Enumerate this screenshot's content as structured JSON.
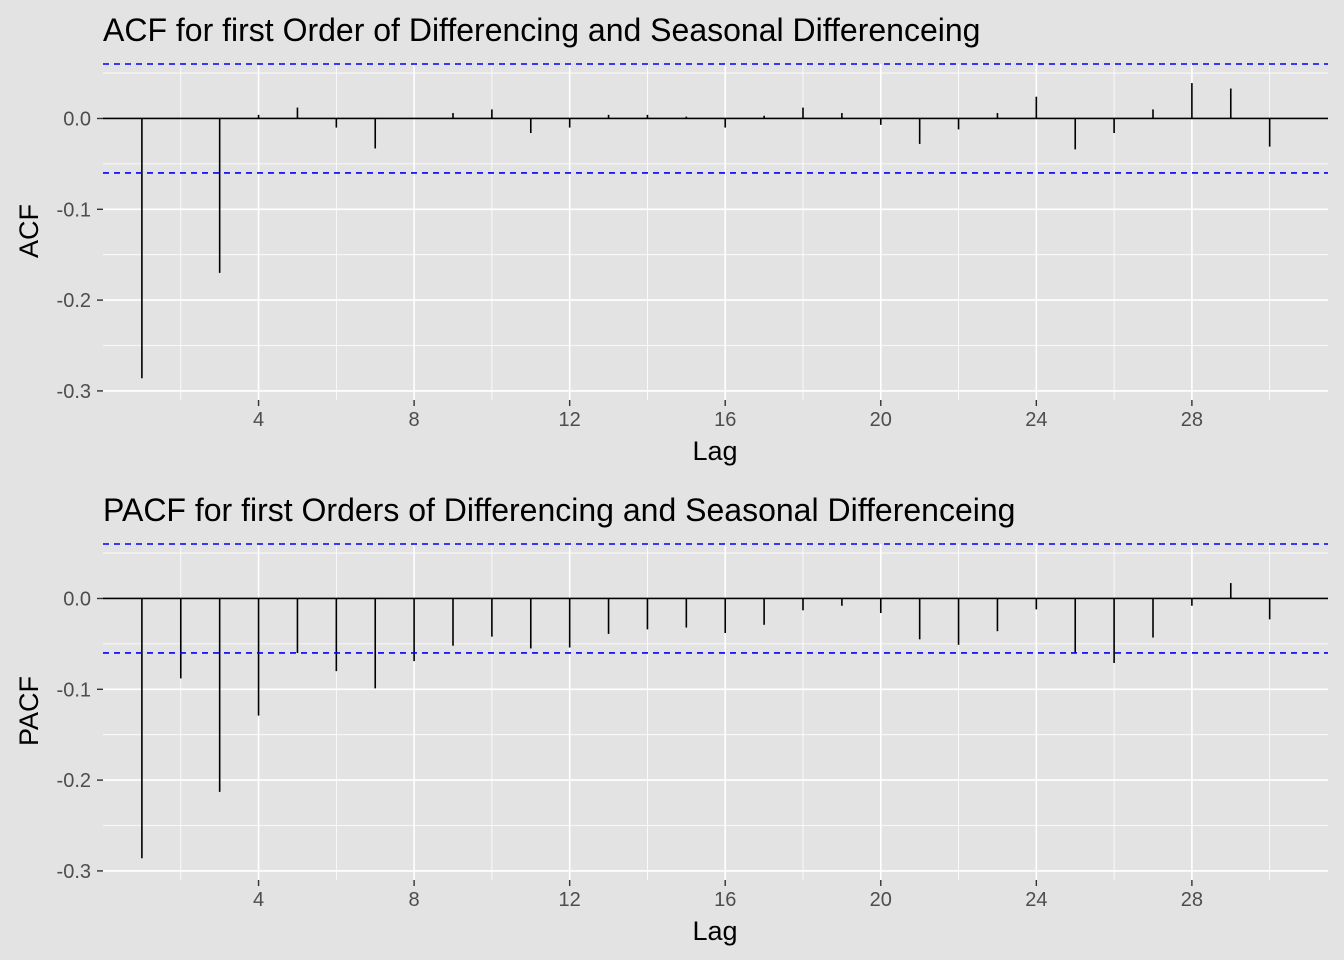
{
  "chart_data": [
    {
      "type": "bar",
      "title": "ACF for first Order of Differencing and Seasonal Differenceing",
      "xlabel": "Lag",
      "ylabel": "ACF",
      "xlim": [
        0.0,
        31.5
      ],
      "ylim": [
        -0.31,
        0.06
      ],
      "x_ticks": [
        4,
        8,
        12,
        16,
        20,
        24,
        28
      ],
      "y_ticks": [
        -0.3,
        -0.2,
        -0.1,
        0.0
      ],
      "y_tick_labels": [
        "-0.3",
        "-0.2",
        "-0.1",
        "0.0"
      ],
      "x_tick_labels": [
        "4",
        "8",
        "12",
        "16",
        "20",
        "24",
        "28"
      ],
      "ci": 0.06,
      "grid": true,
      "x": [
        1,
        2,
        3,
        4,
        5,
        6,
        7,
        8,
        9,
        10,
        11,
        12,
        13,
        14,
        15,
        16,
        17,
        18,
        19,
        20,
        21,
        22,
        23,
        24,
        25,
        26,
        27,
        28,
        29,
        30
      ],
      "values": [
        -0.286,
        0.0,
        -0.17,
        0.004,
        0.012,
        -0.01,
        -0.033,
        0.0,
        0.006,
        0.01,
        -0.016,
        -0.01,
        0.004,
        0.004,
        0.002,
        -0.01,
        0.003,
        0.012,
        0.006,
        -0.007,
        -0.028,
        -0.012,
        0.006,
        0.024,
        -0.034,
        -0.016,
        0.01,
        0.039,
        0.033,
        -0.031
      ]
    },
    {
      "type": "bar",
      "title": "PACF for first Orders of Differencing and Seasonal Differenceing",
      "xlabel": "Lag",
      "ylabel": "PACF",
      "xlim": [
        0.0,
        31.5
      ],
      "ylim": [
        -0.31,
        0.06
      ],
      "x_ticks": [
        4,
        8,
        12,
        16,
        20,
        24,
        28
      ],
      "y_ticks": [
        -0.3,
        -0.2,
        -0.1,
        0.0
      ],
      "y_tick_labels": [
        "-0.3",
        "-0.2",
        "-0.1",
        "0.0"
      ],
      "x_tick_labels": [
        "4",
        "8",
        "12",
        "16",
        "20",
        "24",
        "28"
      ],
      "ci": 0.06,
      "grid": true,
      "x": [
        1,
        2,
        3,
        4,
        5,
        6,
        7,
        8,
        9,
        10,
        11,
        12,
        13,
        14,
        15,
        16,
        17,
        18,
        19,
        20,
        21,
        22,
        23,
        24,
        25,
        26,
        27,
        28,
        29,
        30
      ],
      "values": [
        -0.286,
        -0.088,
        -0.213,
        -0.129,
        -0.06,
        -0.08,
        -0.099,
        -0.069,
        -0.052,
        -0.042,
        -0.055,
        -0.054,
        -0.039,
        -0.034,
        -0.032,
        -0.038,
        -0.029,
        -0.013,
        -0.008,
        -0.016,
        -0.045,
        -0.051,
        -0.036,
        -0.012,
        -0.06,
        -0.071,
        -0.043,
        -0.008,
        0.017,
        -0.023
      ]
    }
  ]
}
